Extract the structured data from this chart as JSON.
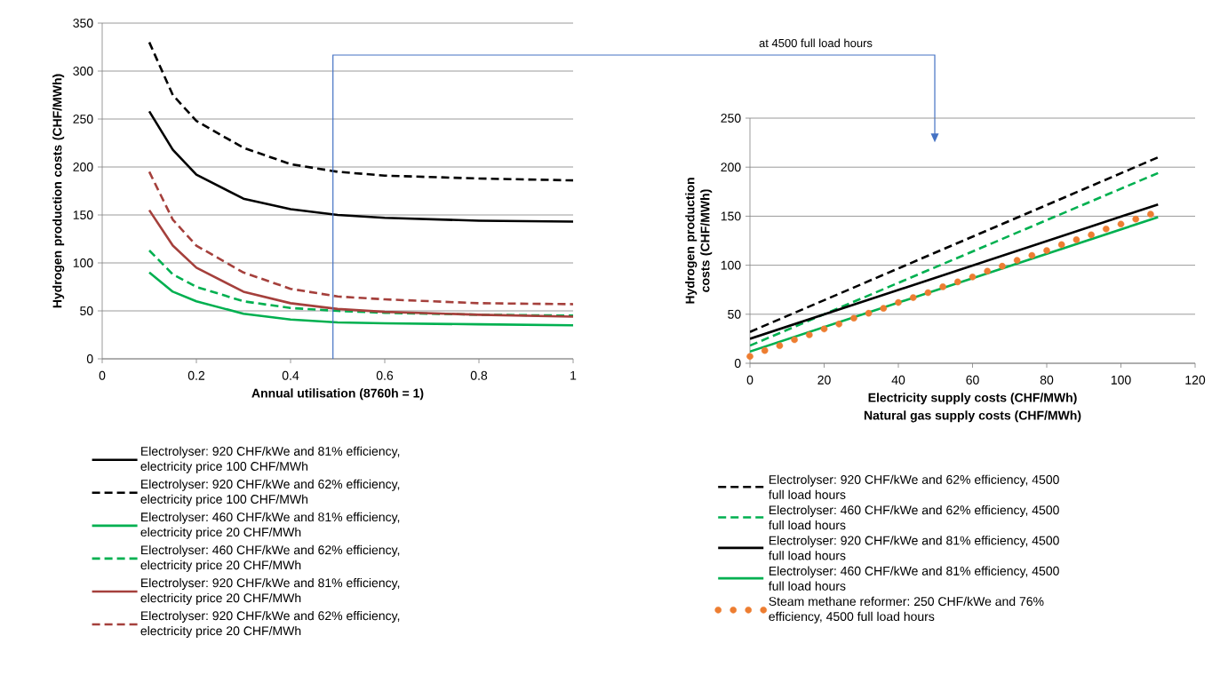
{
  "chart_data": [
    {
      "type": "line",
      "xlabel": "Annual utilisation (8760h = 1)",
      "ylabel": "Hydrogen production  costs (CHF/MWh)",
      "x": [
        0.1,
        0.15,
        0.2,
        0.3,
        0.4,
        0.5,
        0.6,
        0.8,
        1
      ],
      "xlim": [
        0,
        1
      ],
      "xticks": [
        0,
        0.2,
        0.4,
        0.6,
        0.8,
        1
      ],
      "ylim": [
        0,
        350
      ],
      "yticks": [
        0,
        50,
        100,
        150,
        200,
        250,
        300,
        350
      ],
      "grid": "y",
      "legend": "bottom",
      "ref_lines": [
        {
          "axis": "x",
          "value": 0.49,
          "label": "at 4500 full load hours",
          "color": "#4472c4"
        }
      ],
      "series": [
        {
          "name": "Electrolyser: 920 CHF/kWe and 81% efficiency, electricity price 100 CHF/MWh",
          "color": "#000000",
          "line_style": "solid",
          "values": [
            258,
            218,
            192,
            167,
            156,
            150,
            147,
            144,
            143
          ]
        },
        {
          "name": "Electrolyser: 920 CHF/kWe and 62% efficiency, electricity price 100 CHF/MWh",
          "color": "#000000",
          "line_style": "dashed",
          "values": [
            330,
            275,
            248,
            220,
            203,
            195,
            191,
            188,
            186
          ]
        },
        {
          "name": "Electrolyser: 460 CHF/kWe and 81% efficiency, electricity price 20 CHF/MWh",
          "color": "#00b050",
          "line_style": "solid",
          "values": [
            90,
            70,
            60,
            47,
            41,
            38,
            37,
            36,
            35
          ]
        },
        {
          "name": "Electrolyser: 460 CHF/kWe and 62% efficiency, electricity price 20 CHF/MWh",
          "color": "#00b050",
          "line_style": "dashed",
          "values": [
            113,
            88,
            75,
            60,
            53,
            50,
            48,
            46,
            45
          ]
        },
        {
          "name": "Electrolyser: 920 CHF/kWe and 81% efficiency, electricity price 20 CHF/MWh",
          "color": "#a5403c",
          "line_style": "solid",
          "values": [
            155,
            118,
            95,
            70,
            58,
            52,
            49,
            46,
            44
          ]
        },
        {
          "name": "Electrolyser: 920 CHF/kWe and 62% efficiency, electricity price 20 CHF/MWh",
          "color": "#a5403c",
          "line_style": "dashed",
          "values": [
            195,
            145,
            118,
            90,
            73,
            65,
            62,
            58,
            57
          ]
        }
      ]
    },
    {
      "type": "line",
      "xlabel": "Electricity supply costs (CHF/MWh)",
      "ylabel": "Hydrogen production  costs (CHF/MWh)",
      "annotations": [
        "Natural gas supply costs (CHF/MWh)"
      ],
      "x": [
        0,
        110
      ],
      "xlim": [
        0,
        120
      ],
      "xticks": [
        0,
        20,
        40,
        60,
        80,
        100,
        120
      ],
      "ylim": [
        0,
        250
      ],
      "yticks": [
        0,
        50,
        100,
        150,
        200,
        250
      ],
      "grid": "y",
      "legend": "bottom",
      "series": [
        {
          "name": "Electrolyser: 920 CHF/kWe and 62% efficiency, 4500 full load hours",
          "color": "#000000",
          "line_style": "dashed",
          "values": [
            32,
            210
          ]
        },
        {
          "name": "Electrolyser: 460 CHF/kWe and 62% efficiency, 4500 full load hours",
          "color": "#00b050",
          "line_style": "dashed",
          "values": [
            18,
            194
          ]
        },
        {
          "name": "Electrolyser: 920 CHF/kWe and 81% efficiency, 4500 full load hours",
          "color": "#000000",
          "line_style": "solid",
          "values": [
            25,
            162
          ]
        },
        {
          "name": "Electrolyser: 460 CHF/kWe and 81% efficiency, 4500 full load hours",
          "color": "#00b050",
          "line_style": "solid",
          "values": [
            12,
            149
          ]
        },
        {
          "name": "Steam methane reformer: 250 CHF/kWe and 76% efficiency, 4500 full load hours",
          "color": "#ed7d31",
          "type": "scatter",
          "marker": "circle",
          "x": [
            0,
            4,
            8,
            12,
            16,
            20,
            24,
            28,
            32,
            36,
            40,
            44,
            48,
            52,
            56,
            60,
            64,
            68,
            72,
            76,
            80,
            84,
            88,
            92,
            96,
            100,
            104,
            108
          ],
          "values": [
            7,
            13,
            18,
            24,
            29,
            35,
            40,
            46,
            51,
            56,
            62,
            67,
            72,
            78,
            83,
            88,
            94,
            99,
            105,
            110,
            115,
            121,
            126,
            131,
            137,
            142,
            147,
            152
          ]
        }
      ]
    }
  ]
}
